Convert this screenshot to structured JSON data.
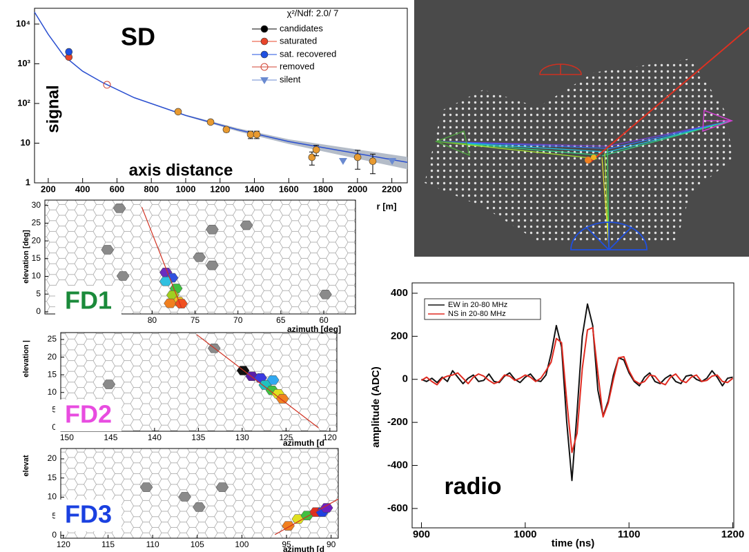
{
  "chart_data": [
    {
      "type": "scatter",
      "title": "SD",
      "annotation": "axis distance",
      "legend_title": "χ²/Ndf: 2.0/ 7",
      "xlabel": "r [m]",
      "ylabel": "signal",
      "log_y": true,
      "xlim": [
        120,
        2290
      ],
      "ylim": [
        1,
        25000
      ],
      "xticks": [
        200,
        400,
        600,
        800,
        1000,
        1200,
        1400,
        1600,
        1800,
        2000,
        2200
      ],
      "yticks": [
        1,
        10,
        {
          "value": 100,
          "label": "10²"
        },
        {
          "value": 1000,
          "label": "10³"
        },
        {
          "value": 10000,
          "label": "10⁴"
        }
      ],
      "fit": {
        "color": "#2a4fd0",
        "band_color": "#b4bcc8",
        "x": [
          120,
          200,
          290,
          400,
          520,
          700,
          1000,
          1300,
          1600,
          1900,
          2290
        ],
        "y": [
          20000,
          5500,
          1600,
          650,
          330,
          140,
          50,
          22,
          11,
          6.5,
          3.3
        ],
        "low": [
          20000,
          5500,
          1600,
          650,
          330,
          138,
          48,
          20,
          9.5,
          5,
          2.2
        ],
        "high": [
          20000,
          5500,
          1600,
          650,
          330,
          142,
          52,
          24,
          12.5,
          8,
          4.5
        ]
      },
      "series": [
        {
          "name": "candidates",
          "color": "#000000",
          "point_color": "#e89a30",
          "marker": "circle",
          "x": [
            956,
            1145,
            1237,
            1378,
            1414,
            1735,
            1760,
            2001,
            2089
          ],
          "values": [
            62,
            34,
            22,
            16.5,
            16.5,
            4.4,
            6.8,
            4.4,
            3.5
          ],
          "errors": [
            5,
            4,
            3,
            3.5,
            3.5,
            1.6,
            2,
            2.2,
            1.8
          ]
        },
        {
          "name": "saturated",
          "color": "#e8452a",
          "marker": "circle",
          "x": [
            320
          ],
          "values": [
            1470
          ]
        },
        {
          "name": "sat. recovered",
          "color": "#2050e0",
          "marker": "circle",
          "x": [
            320
          ],
          "values": [
            2000
          ]
        },
        {
          "name": "removed",
          "color": "#d04030",
          "marker": "open-circle",
          "x": [
            542
          ],
          "values": [
            295
          ]
        },
        {
          "name": "silent",
          "color": "#6a8ad0",
          "marker": "triangle-down",
          "x": [
            1916,
            2202
          ],
          "values": [
            3.6,
            3.6
          ]
        }
      ]
    },
    {
      "type": "camera",
      "title": "FD1",
      "title_color": "#1a8a3a",
      "xlabel": "azimuth  [deg]",
      "ylabel": "elevation  [deg]",
      "xlim": [
        92.5,
        56.3
      ],
      "ylim": [
        -0.6,
        31.5
      ],
      "xticks": [
        80,
        75,
        70,
        65,
        60
      ],
      "yticks": [
        0,
        5,
        10,
        15,
        20,
        25,
        30
      ],
      "track": {
        "color": "#d03020",
        "x": [
          81.2,
          76.6
        ],
        "y": [
          29.5,
          1.2
        ]
      },
      "inactive": {
        "color": "#8a8a8a",
        "x": [
          83.8,
          85.2,
          73.0,
          69.0,
          74.5,
          73.0,
          83.4,
          59.8
        ],
        "y": [
          29.2,
          17.5,
          23.2,
          24.4,
          15.4,
          13.1,
          10.1,
          4.9
        ]
      },
      "pixels": {
        "x": [
          78.4,
          77.7,
          78.4,
          77.2,
          77.6,
          76.9,
          77.9,
          76.6
        ],
        "y": [
          11.1,
          9.6,
          8.6,
          6.6,
          4.7,
          2.9,
          2.4,
          2.3
        ],
        "colors": [
          "#6a2cc0",
          "#3050e0",
          "#30c0e0",
          "#40c040",
          "#a0d020",
          "#f0c020",
          "#f08020",
          "#f05020"
        ]
      }
    },
    {
      "type": "camera",
      "title": "FD2",
      "title_color": "#e84ce0",
      "xlabel": "azimuth  [d",
      "ylabel": "elevation  |",
      "xlim": [
        150.7,
        119.2
      ],
      "ylim": [
        -0.98,
        26.95
      ],
      "xticks": [
        150,
        145,
        140,
        135,
        130,
        125,
        120
      ],
      "yticks": [
        0,
        5,
        10,
        15,
        20,
        25
      ],
      "track": {
        "color": "#d03020",
        "x": [
          135.2,
          121.3
        ],
        "y": [
          26.4,
          0
        ]
      },
      "inactive": {
        "color": "#8a8a8a",
        "x": [
          133.2,
          145.2
        ],
        "y": [
          22.5,
          12.3
        ]
      },
      "pixels": {
        "x": [
          129.9,
          128.9,
          127.9,
          126.5,
          127.4,
          126.6,
          125.9,
          125.4
        ],
        "y": [
          16.2,
          14.6,
          14.1,
          13.5,
          12.1,
          10.6,
          9.6,
          8.2
        ],
        "colors": [
          "#111111",
          "#5a1ea8",
          "#3a3ae0",
          "#30a8f0",
          "#20c0c0",
          "#40c040",
          "#e0e020",
          "#f08020"
        ]
      }
    },
    {
      "type": "camera",
      "title": "FD3",
      "title_color": "#1a40e0",
      "xlabel": "azimuth  [d",
      "ylabel": "elevat",
      "xlim": [
        120.3,
        89.2
      ],
      "ylim": [
        -0.72,
        22.7
      ],
      "xticks": [
        120,
        115,
        110,
        105,
        100,
        95,
        90
      ],
      "yticks": [
        0,
        5,
        10,
        15,
        20
      ],
      "track": {
        "color": "#d03020",
        "x": [
          96.3,
          89.2
        ],
        "y": [
          0.2,
          9.5
        ]
      },
      "inactive": {
        "color": "#8a8a8a",
        "x": [
          110.7,
          106.4,
          104.8,
          102.2
        ],
        "y": [
          12.6,
          10.1,
          7.4,
          12.6
        ]
      },
      "pixels": {
        "x": [
          94.8,
          93.7,
          92.7,
          91.7,
          91.0,
          90.5
        ],
        "y": [
          2.5,
          4.3,
          5.2,
          6.1,
          6.1,
          7.2
        ],
        "colors": [
          "#f08020",
          "#e0e020",
          "#40c040",
          "#e03020",
          "#2040e0",
          "#7020c0"
        ]
      }
    },
    {
      "type": "line",
      "title": "radio",
      "xlabel": "time (ns)",
      "ylabel": "amplitude (ADC)",
      "xlim": [
        891,
        1201
      ],
      "ylim": [
        -690,
        448
      ],
      "xticks": [
        900,
        1000,
        1100,
        1200
      ],
      "yticks": [
        -600,
        -400,
        -200,
        0,
        200,
        400
      ],
      "x": [
        900,
        905,
        910,
        915,
        920,
        925,
        930,
        935,
        940,
        945,
        950,
        955,
        960,
        965,
        970,
        975,
        980,
        985,
        990,
        995,
        1000,
        1005,
        1010,
        1015,
        1020,
        1025,
        1030,
        1035,
        1040,
        1045,
        1050,
        1055,
        1060,
        1065,
        1070,
        1075,
        1080,
        1085,
        1090,
        1095,
        1100,
        1105,
        1110,
        1115,
        1120,
        1125,
        1130,
        1135,
        1140,
        1145,
        1150,
        1155,
        1160,
        1165,
        1170,
        1175,
        1180,
        1185,
        1190,
        1195,
        1200
      ],
      "series": [
        {
          "name": "EW in 20-80 MHz",
          "color": "#111111",
          "values": [
            0,
            -10,
            5,
            -15,
            10,
            -10,
            40,
            10,
            -20,
            5,
            20,
            -10,
            -5,
            25,
            -10,
            -15,
            15,
            30,
            0,
            -15,
            10,
            25,
            -5,
            -10,
            20,
            120,
            250,
            150,
            -200,
            -470,
            -150,
            200,
            350,
            250,
            -50,
            -170,
            -100,
            20,
            100,
            90,
            30,
            -10,
            -30,
            10,
            30,
            -10,
            -20,
            5,
            20,
            -10,
            -20,
            15,
            20,
            0,
            -10,
            5,
            40,
            10,
            -30,
            5,
            10
          ]
        },
        {
          "name": "NS in 20-80 MHz",
          "color": "#e02a20",
          "values": [
            -5,
            10,
            -10,
            -25,
            5,
            15,
            20,
            30,
            5,
            -20,
            10,
            25,
            15,
            -5,
            -20,
            -10,
            20,
            15,
            -5,
            5,
            20,
            10,
            -10,
            5,
            40,
            80,
            190,
            170,
            -100,
            -340,
            -250,
            50,
            230,
            240,
            30,
            -175,
            -110,
            0,
            100,
            105,
            40,
            -5,
            -20,
            -10,
            20,
            15,
            -15,
            -25,
            10,
            25,
            -5,
            -15,
            10,
            20,
            -10,
            -5,
            15,
            20,
            -10,
            -15,
            5
          ]
        }
      ]
    }
  ]
}
